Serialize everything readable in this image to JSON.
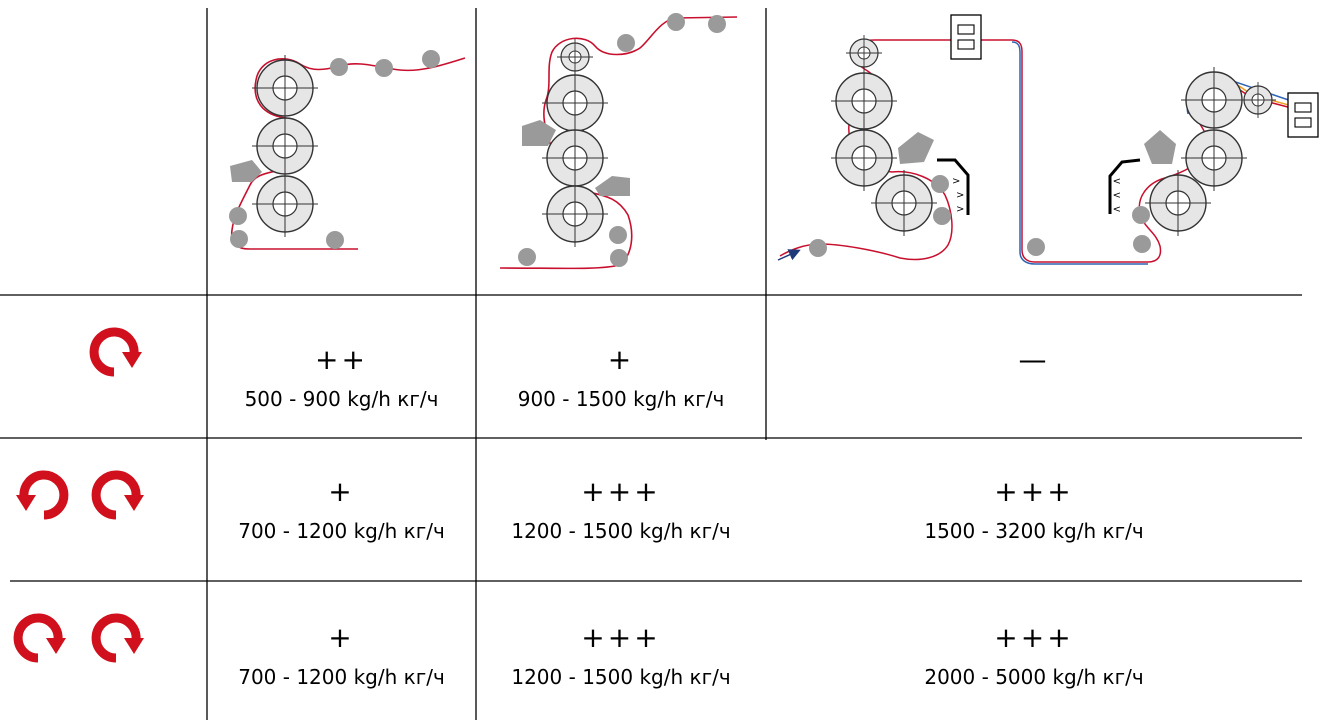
{
  "colors": {
    "film": "#c8102e",
    "film_alt_blue": "#2e64b4",
    "film_alt_orange": "#f0a020",
    "roll_fill": "#e6e6e6",
    "idler": "#9a9a9a",
    "arrow_red": "#d0101c",
    "grid": "#000000"
  },
  "icons": [
    "rotation-single-cw-icon",
    "rotation-counter-pair-icon",
    "rotation-same-pair-icon",
    "chill-roll-diagram-icon",
    "air-knife-icon",
    "edge-guide-icon"
  ],
  "rows": [
    {
      "rotation_icon": "rotation-single-cw-icon",
      "cells": [
        {
          "rating": "++",
          "rate": "500 - 900 kg/h кг/ч"
        },
        {
          "rating": "+",
          "rate": "900 - 1500 kg/h кг/ч"
        },
        {
          "rating": "—",
          "rate": ""
        }
      ]
    },
    {
      "rotation_icon": "rotation-counter-pair-icon",
      "cells": [
        {
          "rating": "+",
          "rate": "700 - 1200 kg/h кг/ч"
        },
        {
          "rating": "+++",
          "rate": "1200 - 1500 kg/h кг/ч"
        },
        {
          "rating": "+++",
          "rate": "1500 - 3200 kg/h кг/ч"
        }
      ]
    },
    {
      "rotation_icon": "rotation-same-pair-icon",
      "cells": [
        {
          "rating": "+",
          "rate": "700 - 1200 kg/h кг/ч"
        },
        {
          "rating": "+++",
          "rate": "1200 - 1500 kg/h кг/ч"
        },
        {
          "rating": "+++",
          "rate": "2000 - 5000 kg/h кг/ч"
        }
      ]
    }
  ],
  "edge_guide_marks": ">"
}
